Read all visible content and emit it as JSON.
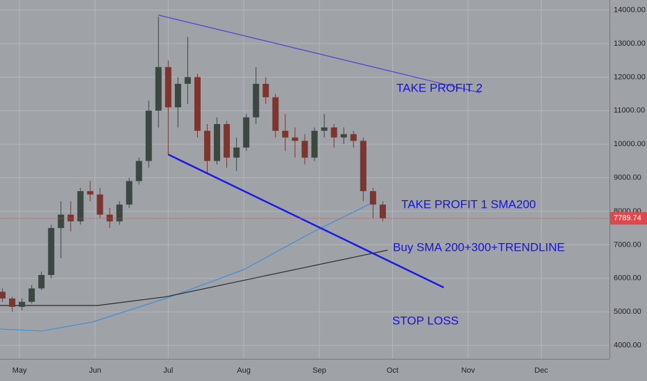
{
  "chart_data": {
    "type": "candlestick",
    "x": [
      -7,
      -3,
      1,
      5,
      9,
      13,
      17,
      21,
      25,
      29,
      33,
      37,
      41,
      45,
      49,
      53,
      57,
      61,
      65,
      69,
      73,
      77,
      81,
      85,
      89,
      93,
      97,
      101,
      105,
      109,
      113,
      117,
      121,
      125,
      129,
      133,
      137,
      141,
      145,
      149
    ],
    "open": [
      5600,
      5400,
      5150,
      5300,
      5700,
      6100,
      7500,
      7900,
      7700,
      8600,
      8500,
      7900,
      7700,
      8200,
      8900,
      9500,
      11000,
      12300,
      11100,
      11800,
      12000,
      10400,
      9500,
      10600,
      9600,
      9900,
      10800,
      11800,
      11400,
      10400,
      10200,
      10100,
      9600,
      10400,
      10500,
      10200,
      10300,
      10100,
      8600,
      8200
    ],
    "high": [
      5700,
      5450,
      5400,
      5800,
      6200,
      7600,
      8300,
      8300,
      8700,
      8900,
      8700,
      8100,
      8300,
      9000,
      9600,
      11300,
      13800,
      12500,
      12000,
      13200,
      12100,
      10600,
      10800,
      10700,
      10200,
      10900,
      12300,
      12000,
      11500,
      10900,
      10500,
      10300,
      10500,
      10900,
      10600,
      10500,
      10400,
      10200,
      8700,
      8300
    ],
    "low": [
      5300,
      5000,
      5050,
      5250,
      5650,
      6000,
      6600,
      7400,
      7600,
      8300,
      7800,
      7500,
      7600,
      8100,
      8800,
      9300,
      10500,
      9700,
      10500,
      11200,
      10200,
      9100,
      9400,
      9300,
      9200,
      9800,
      10600,
      11200,
      10200,
      9800,
      9600,
      9400,
      9500,
      10200,
      9900,
      10000,
      9900,
      8300,
      7800,
      7700
    ],
    "close": [
      5400,
      5150,
      5300,
      5700,
      6100,
      7500,
      7900,
      7700,
      8600,
      8500,
      7900,
      7700,
      8200,
      8900,
      9500,
      11000,
      12300,
      11100,
      11800,
      12000,
      10400,
      9500,
      10600,
      9600,
      9900,
      10800,
      11800,
      11400,
      10400,
      10200,
      10100,
      9600,
      10400,
      10500,
      10200,
      10300,
      10100,
      8600,
      8200,
      7790
    ],
    "up_color": "#3b4740",
    "down_color": "#7d3530",
    "series": [
      {
        "color": "#3f8fd8",
        "x": [
          -8,
          9,
          30,
          60,
          92,
          120,
          146
        ],
        "values": [
          4490,
          4430,
          4700,
          5400,
          6260,
          7370,
          8300
        ]
      },
      {
        "color": "#2a2a2a",
        "x": [
          -8,
          32,
          60,
          92,
          120,
          151
        ],
        "values": [
          5190,
          5190,
          5450,
          5940,
          6370,
          6840
        ]
      }
    ],
    "trendlines": [
      {
        "color": "#4a3fd6",
        "x": [
          57,
          189
        ],
        "values": [
          13850,
          11530
        ]
      },
      {
        "color": "#1a1ae6",
        "x": [
          61,
          174
        ],
        "values": [
          9693,
          5727
        ]
      }
    ],
    "annotations": [
      "TAKE PROFIT 2",
      "TAKE PROFIT 1 SMA200",
      "Buy SMA 200+300+TRENDLINE",
      "STOP LOSS"
    ],
    "last_price": 7789.74,
    "last_price_color": "#e0474c",
    "xlim": [
      -8,
      242
    ],
    "ylim": [
      3600,
      14300
    ],
    "xticks": [
      {
        "value": 0,
        "label": "May"
      },
      {
        "value": 31,
        "label": "Jun"
      },
      {
        "value": 61,
        "label": "Jul"
      },
      {
        "value": 92,
        "label": "Aug"
      },
      {
        "value": 123,
        "label": "Sep"
      },
      {
        "value": 153,
        "label": "Oct"
      },
      {
        "value": 184,
        "label": "Nov"
      },
      {
        "value": 214,
        "label": "Dec"
      }
    ],
    "yticks": [
      {
        "value": 4000,
        "label": "4000.00"
      },
      {
        "value": 5000,
        "label": "5000.00"
      },
      {
        "value": 6000,
        "label": "6000.00"
      },
      {
        "value": 7000,
        "label": "7000.00"
      },
      {
        "value": 8000,
        "label": "8000.00"
      },
      {
        "value": 9000,
        "label": "9000.00"
      },
      {
        "value": 10000,
        "label": "10000.00"
      },
      {
        "value": 11000,
        "label": "11000.00"
      },
      {
        "value": 12000,
        "label": "12000.00"
      },
      {
        "value": 13000,
        "label": "13000.00"
      },
      {
        "value": 14000,
        "label": "14000.00"
      }
    ],
    "grid": true
  }
}
